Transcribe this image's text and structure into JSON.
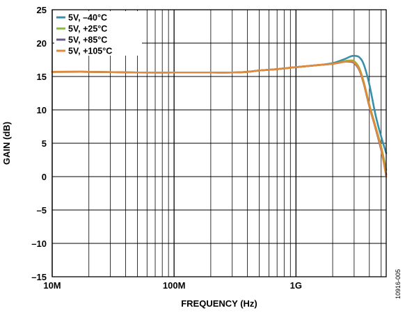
{
  "figure_id": "10916-005",
  "chart_data": {
    "type": "line",
    "xlabel": "FREQUENCY (Hz)",
    "ylabel": "GAIN (dB)",
    "x_scale": "log",
    "xlim": [
      10000000,
      5500000000
    ],
    "ylim": [
      -15,
      25
    ],
    "x_ticks": [
      {
        "value": 10000000,
        "label": "10M"
      },
      {
        "value": 100000000,
        "label": "100M"
      },
      {
        "value": 1000000000,
        "label": "1G"
      }
    ],
    "y_ticks": [
      {
        "value": 25,
        "label": "25"
      },
      {
        "value": 20,
        "label": "20"
      },
      {
        "value": 15,
        "label": "15"
      },
      {
        "value": 10,
        "label": "10"
      },
      {
        "value": 5,
        "label": "5"
      },
      {
        "value": 0,
        "label": "0"
      },
      {
        "value": -5,
        "label": "–5"
      },
      {
        "value": -10,
        "label": "–10"
      },
      {
        "value": -15,
        "label": "–15"
      }
    ],
    "grid": true,
    "legend_position": "top-left",
    "series": [
      {
        "name": "5V, –40°C",
        "color": "#3a8fa8",
        "x": [
          10000000,
          20000000,
          50000000,
          100000000,
          200000000,
          300000000,
          400000000,
          500000000,
          700000000,
          1000000000,
          1500000000,
          2000000000,
          2500000000,
          2800000000,
          3000000000,
          3300000000,
          3600000000,
          4000000000,
          4500000000,
          5000000000,
          5500000000
        ],
        "y": [
          15.7,
          15.7,
          15.6,
          15.6,
          15.6,
          15.6,
          15.7,
          15.9,
          16.1,
          16.4,
          16.7,
          17.0,
          17.6,
          18.0,
          18.1,
          17.9,
          16.8,
          13.8,
          9.2,
          6.0,
          3.5
        ]
      },
      {
        "name": "5V, +25°C",
        "color": "#8cb83d",
        "x": [
          10000000,
          20000000,
          50000000,
          100000000,
          200000000,
          300000000,
          400000000,
          500000000,
          700000000,
          1000000000,
          1500000000,
          2000000000,
          2500000000,
          2800000000,
          3000000000,
          3300000000,
          3600000000,
          4000000000,
          4500000000,
          5000000000,
          5500000000
        ],
        "y": [
          15.7,
          15.7,
          15.6,
          15.6,
          15.6,
          15.6,
          15.7,
          15.9,
          16.1,
          16.4,
          16.7,
          16.9,
          17.3,
          17.4,
          17.3,
          16.3,
          14.2,
          10.8,
          7.5,
          4.5,
          1.0
        ]
      },
      {
        "name": "5V, +85°C",
        "color": "#6b5a8e",
        "x": [
          10000000,
          20000000,
          50000000,
          100000000,
          200000000,
          300000000,
          400000000,
          500000000,
          700000000,
          1000000000,
          1500000000,
          2000000000,
          2500000000,
          2800000000,
          3000000000,
          3300000000,
          3600000000,
          4000000000,
          4500000000,
          5000000000,
          5500000000
        ],
        "y": [
          15.7,
          15.7,
          15.6,
          15.6,
          15.6,
          15.6,
          15.7,
          15.9,
          16.1,
          16.4,
          16.7,
          16.9,
          17.2,
          17.2,
          17.0,
          16.0,
          13.9,
          10.5,
          7.2,
          4.0,
          0.3
        ]
      },
      {
        "name": "5V, +105°C",
        "color": "#e08a3a",
        "x": [
          10000000,
          20000000,
          50000000,
          100000000,
          200000000,
          300000000,
          400000000,
          500000000,
          700000000,
          1000000000,
          1500000000,
          2000000000,
          2500000000,
          2800000000,
          3000000000,
          3300000000,
          3600000000,
          4000000000,
          4500000000,
          5000000000,
          5500000000
        ],
        "y": [
          15.7,
          15.7,
          15.6,
          15.6,
          15.6,
          15.6,
          15.7,
          15.9,
          16.1,
          16.4,
          16.7,
          16.9,
          17.2,
          17.3,
          17.1,
          16.1,
          14.0,
          10.6,
          7.3,
          4.2,
          0.0
        ]
      }
    ]
  }
}
